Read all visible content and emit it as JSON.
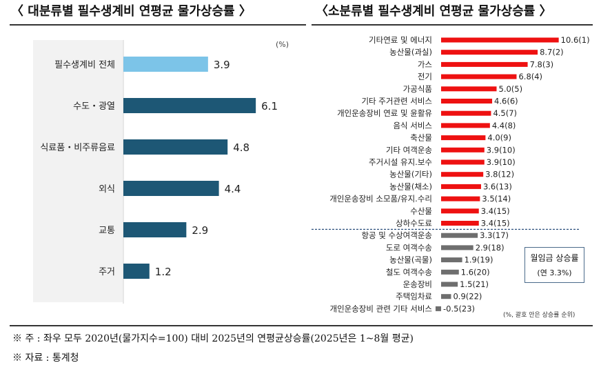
{
  "left_title": "〈 대분류별 필수생계비 연평균 물가상승률 〉",
  "right_title": "〈소분류별 필수생계비 연평균 물가상승률 〉",
  "unit_label": "(%)",
  "notes": {
    "line1": "※ 주 : 좌우 모두 2020년(물가지수=100) 대비 2025년의 연평균상승률(2025년은 1~8월 평균)",
    "line2": "※ 자료 : 통계청"
  },
  "legend": {
    "line1": "월임금 상승률",
    "line2": "(연 3.3%)"
  },
  "right_footnote": "(%, 괄호 안은 상승률 순위)",
  "colors": {
    "left_highlight": "#7cc4e8",
    "left_bar": "#1d5775",
    "right_above": "#ee1111",
    "right_below": "#6e6e6e",
    "reference_line": "#2a4e7a"
  },
  "chart_data": [
    {
      "type": "bar",
      "orientation": "horizontal",
      "title": "〈 대분류별 필수생계비 연평균 물가상승률 〉",
      "unit": "(%)",
      "categories": [
        "필수생계비 전체",
        "수도・광열",
        "식료품・비주류음료",
        "외식",
        "교통",
        "주거"
      ],
      "values": [
        3.9,
        6.1,
        4.8,
        4.4,
        2.9,
        1.2
      ],
      "labels": [
        "3.9",
        "6.1",
        "4.8",
        "4.4",
        "2.9",
        "1.2"
      ],
      "xlim": [
        0,
        7
      ],
      "grid": false
    },
    {
      "type": "bar",
      "orientation": "horizontal",
      "title": "〈소분류별 필수생계비 연평균 물가상승률 〉",
      "categories": [
        "기타연료 및 에너지",
        "농산물(과실)",
        "가스",
        "전기",
        "가공식품",
        "기타 주거관련 서비스",
        "개인운송장비 연료 및 윤활유",
        "음식 서비스",
        "축산물",
        "기타 여객운송",
        "주거시설 유지.보수",
        "농산물(기타)",
        "농산물(채소)",
        "개인운송장비 소모품/유지.수리",
        "수산물",
        "상하수도료",
        "항공 및 수상여객운송",
        "도로 여객수송",
        "농산물(곡물)",
        "철도 여객수송",
        "운송장비",
        "주택임차료",
        "개인운송장비 관련 기타 서비스"
      ],
      "values": [
        10.6,
        8.7,
        7.8,
        6.8,
        5.0,
        4.6,
        4.5,
        4.4,
        4.0,
        3.9,
        3.9,
        3.8,
        3.6,
        3.5,
        3.4,
        3.4,
        3.3,
        2.9,
        1.9,
        1.6,
        1.5,
        0.9,
        -0.5
      ],
      "labels": [
        "10.6(1)",
        "8.7(2)",
        "7.8(3)",
        "6.8(4)",
        "5.0(5)",
        "4.6(6)",
        "4.5(7)",
        "4.4(8)",
        "4.0(9)",
        "3.9(10)",
        "3.9(10)",
        "3.8(12)",
        "3.6(13)",
        "3.5(14)",
        "3.4(15)",
        "3.4(15)",
        "3.3(17)",
        "2.9(18)",
        "1.9(19)",
        "1.6(20)",
        "1.5(21)",
        "0.9(22)",
        "-0.5(23)"
      ],
      "reference": {
        "label": "월임금 상승률",
        "value": 3.3
      },
      "xlim": [
        -0.5,
        10.6
      ],
      "grid": false
    }
  ]
}
